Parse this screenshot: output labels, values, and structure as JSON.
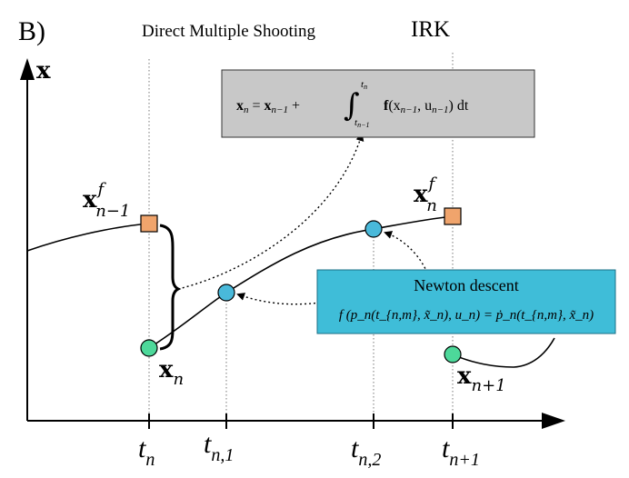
{
  "panel_label": "B)",
  "header": {
    "left": "Direct Multiple Shooting",
    "right": "IRK"
  },
  "axis": {
    "y_label": "x"
  },
  "ticks": {
    "t_n": {
      "base": "t",
      "sub": "n"
    },
    "t_n1": {
      "base": "t",
      "sub": "n,1"
    },
    "t_n2": {
      "base": "t",
      "sub": "n,2"
    },
    "t_np1": {
      "base": "t",
      "sub": "n+1"
    }
  },
  "points": {
    "x_f_prev": {
      "base": "x",
      "sup": "f",
      "sub": "n−1"
    },
    "x_n": {
      "base": "x",
      "sub": "n"
    },
    "x_f_n": {
      "base": "x",
      "sup": "f",
      "sub": "n"
    },
    "x_np1": {
      "base": "x",
      "sub": "n+1"
    }
  },
  "integral_box": {
    "lhs": "x",
    "lhs_sub": "n",
    "eq": " = ",
    "x": "x",
    "x_sub": "n−1",
    "plus": " + ",
    "int_upper": "t",
    "int_upper_sub": "n",
    "int_lower": "t",
    "int_lower_sub": "n−1",
    "f": "f",
    "args": "(x",
    "args_sub1": "n−1",
    "args_mid": ", u",
    "args_sub2": "n−1",
    "args_end": ") dt"
  },
  "newton_box": {
    "title": "Newton descent",
    "equation": "f (p_n(t_{n,m}, x̃_n), u_n) = ṗ_n(t_{n,m}, x̃_n)"
  },
  "colors": {
    "orange": "#F0A46C",
    "blue": "#49B9DA",
    "green": "#4DD89A",
    "gray_box": "#C8C8C8",
    "newton_box": "#3FBDD8"
  }
}
